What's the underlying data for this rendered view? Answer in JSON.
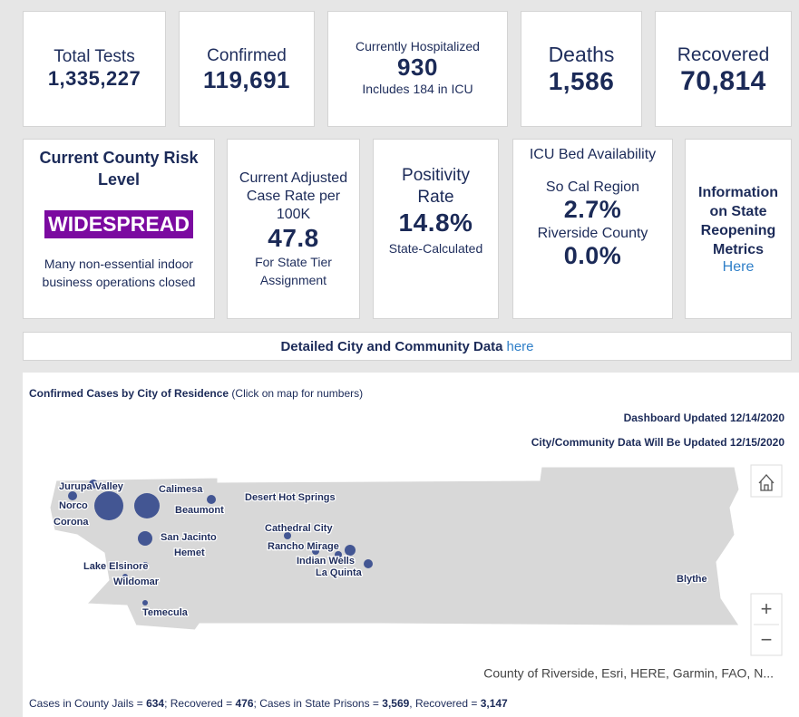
{
  "stats": [
    {
      "label": "Total Tests",
      "value": "1,335,227"
    },
    {
      "label": "Confirmed",
      "value": "119,691"
    },
    {
      "label": "Currently Hospitalized",
      "value": "930",
      "note": "Includes 184 in ICU"
    },
    {
      "label": "Deaths",
      "value": "1,586"
    },
    {
      "label": "Recovered",
      "value": "70,814"
    }
  ],
  "risk": {
    "title": "Current County Risk Level",
    "level": "WIDESPREAD",
    "description": "Many non-essential indoor business operations closed"
  },
  "case_rate": {
    "label": "Current Adjusted Case Rate per 100K",
    "value": "47.8",
    "note": "For State Tier Assignment"
  },
  "positivity": {
    "label": "Positivity Rate",
    "value": "14.8%",
    "note": "State-Calculated"
  },
  "icu": {
    "title": "ICU Bed Availability",
    "regions": [
      {
        "name": "So Cal Region",
        "value": "2.7%"
      },
      {
        "name": "Riverside County",
        "value": "0.0%"
      }
    ]
  },
  "info": {
    "text": "Information on State Reopening Metrics",
    "link": "Here"
  },
  "banner": {
    "text": "Detailed City and Community Data",
    "link": "here"
  },
  "map": {
    "title": "Confirmed Cases by City of Residence",
    "hint": "(Click on map for numbers)",
    "updated": "Dashboard Updated 12/14/2020",
    "city_updated": "City/Community Data Will Be Updated 12/15/2020",
    "cities": [
      "Jurupa Valley",
      "Norco",
      "Corona",
      "Calimesa",
      "Beaumont",
      "Desert Hot Springs",
      "San Jacinto",
      "Hemet",
      "Cathedral City",
      "Rancho Mirage",
      "Indian Wells",
      "La Quinta",
      "Lake Elsinore",
      "Wildomar",
      "Temecula",
      "Blythe"
    ],
    "attribution": "County of Riverside, Esri, HERE, Garmin, FAO, N...",
    "zoom_in": "+",
    "zoom_out": "−"
  },
  "footer": [
    {
      "text": "Cases in County Jails = ",
      "value": "634",
      "sep": "; "
    },
    {
      "text": "Recovered = ",
      "value": "476",
      "sep": "; "
    },
    {
      "text": "Cases in State Prisons = ",
      "value": "3,569",
      "sep": ", "
    },
    {
      "text": "Recovered = ",
      "value": "3,147"
    }
  ]
}
